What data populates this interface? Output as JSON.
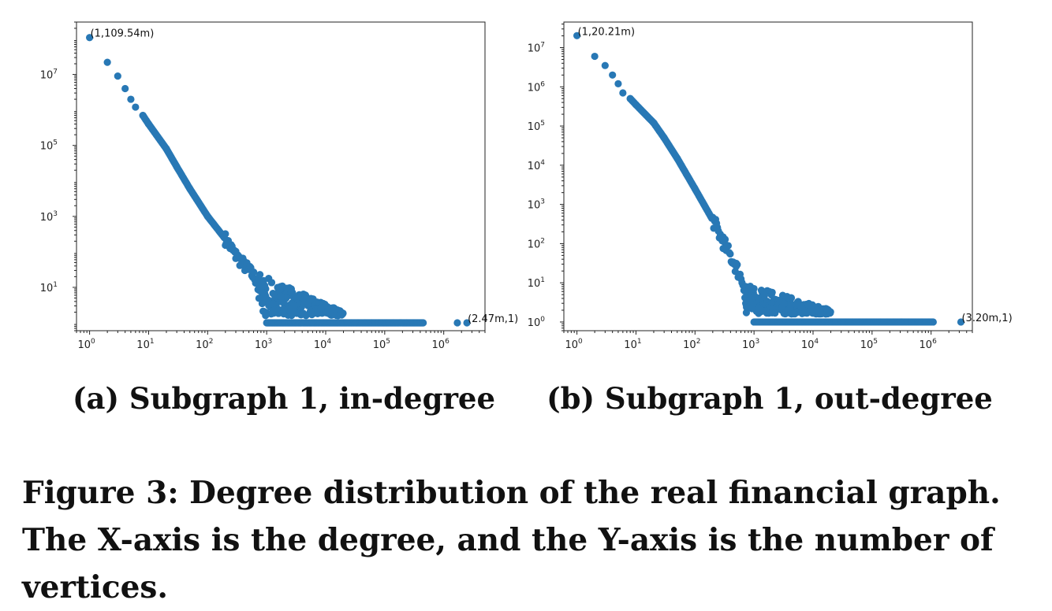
{
  "chart_data": [
    {
      "type": "scatter",
      "caption": "(a) Subgraph 1, in-degree",
      "xscale": "log",
      "yscale": "log",
      "xlim": [
        0.6,
        5000000
      ],
      "ylim": [
        0.6,
        300000000
      ],
      "xticks": [
        {
          "base": "10",
          "exp": "0"
        },
        {
          "base": "10",
          "exp": "1"
        },
        {
          "base": "10",
          "exp": "2"
        },
        {
          "base": "10",
          "exp": "3"
        },
        {
          "base": "10",
          "exp": "4"
        },
        {
          "base": "10",
          "exp": "5"
        },
        {
          "base": "10",
          "exp": "6"
        }
      ],
      "yticks": [
        {
          "base": "10",
          "exp": "1"
        },
        {
          "base": "10",
          "exp": "3"
        },
        {
          "base": "10",
          "exp": "5"
        },
        {
          "base": "10",
          "exp": "7"
        }
      ],
      "color": "#2878b5",
      "curve": [
        [
          1,
          109540000
        ],
        [
          2,
          22000000
        ],
        [
          3,
          9000000
        ],
        [
          4,
          4000000
        ],
        [
          5,
          2000000
        ],
        [
          6,
          1200000
        ],
        [
          8,
          700000
        ],
        [
          10,
          400000
        ],
        [
          20,
          80000
        ],
        [
          30,
          25000
        ],
        [
          50,
          6000
        ],
        [
          100,
          1000
        ],
        [
          200,
          230
        ],
        [
          300,
          80
        ],
        [
          500,
          30
        ],
        [
          700,
          15
        ],
        [
          1000,
          5
        ]
      ],
      "scatter_band": {
        "x_start": 700,
        "x_end": 20000,
        "y_top_at_start": 25,
        "y_top_at_end": 2
      },
      "floor": {
        "y": 1,
        "x_start": 1000,
        "x_end": 450000
      },
      "outliers": [
        [
          1700000,
          1
        ],
        [
          2470000,
          1
        ]
      ],
      "annotations": [
        {
          "text": "(1,109.54m)",
          "x": 1,
          "y": 109540000
        },
        {
          "text": "(2.47m,1)",
          "x": 2470000,
          "y": 1
        }
      ]
    },
    {
      "type": "scatter",
      "caption": "(b) Subgraph 1, out-degree",
      "xscale": "log",
      "yscale": "log",
      "xlim": [
        0.6,
        5000000
      ],
      "ylim": [
        0.6,
        45000000
      ],
      "xticks": [
        {
          "base": "10",
          "exp": "0"
        },
        {
          "base": "10",
          "exp": "1"
        },
        {
          "base": "10",
          "exp": "2"
        },
        {
          "base": "10",
          "exp": "3"
        },
        {
          "base": "10",
          "exp": "4"
        },
        {
          "base": "10",
          "exp": "5"
        },
        {
          "base": "10",
          "exp": "6"
        }
      ],
      "yticks": [
        {
          "base": "10",
          "exp": "0"
        },
        {
          "base": "10",
          "exp": "1"
        },
        {
          "base": "10",
          "exp": "2"
        },
        {
          "base": "10",
          "exp": "3"
        },
        {
          "base": "10",
          "exp": "4"
        },
        {
          "base": "10",
          "exp": "5"
        },
        {
          "base": "10",
          "exp": "6"
        },
        {
          "base": "10",
          "exp": "7"
        }
      ],
      "color": "#2878b5",
      "curve": [
        [
          1,
          20210000
        ],
        [
          2,
          6000000
        ],
        [
          3,
          3500000
        ],
        [
          4,
          2000000
        ],
        [
          5,
          1200000
        ],
        [
          6,
          700000
        ],
        [
          8,
          500000
        ],
        [
          10,
          350000
        ],
        [
          20,
          120000
        ],
        [
          30,
          50000
        ],
        [
          50,
          15000
        ],
        [
          100,
          2500
        ],
        [
          200,
          400
        ],
        [
          300,
          110
        ],
        [
          500,
          25
        ],
        [
          700,
          8
        ],
        [
          1000,
          3
        ]
      ],
      "scatter_band": {
        "x_start": 700,
        "x_end": 20000,
        "y_top_at_start": 10,
        "y_top_at_end": 2
      },
      "floor": {
        "y": 1,
        "x_start": 1000,
        "x_end": 1100000
      },
      "outliers": [
        [
          3200000,
          1
        ]
      ],
      "annotations": [
        {
          "text": "(1,20.21m)",
          "x": 1,
          "y": 20210000
        },
        {
          "text": "(3.20m,1)",
          "x": 3200000,
          "y": 1
        }
      ]
    }
  ],
  "figure_caption": "Figure 3: Degree distribution of the real financial graph. The X-axis is the degree, and the Y-axis is the number of vertices."
}
